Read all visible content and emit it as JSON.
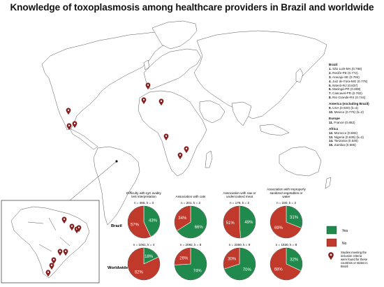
{
  "title": "Knowledge of toxoplasmosis among healthcare providers in Brazil and worldwide",
  "locations": {
    "groups": [
      {
        "name": "Brazil",
        "items": [
          {
            "num": "1.",
            "text": "São Luís-MA (0.768)"
          },
          {
            "num": "2.",
            "text": "Recife-PE (0.772)"
          },
          {
            "num": "3.",
            "text": "Aracaju-SE (0.784)"
          },
          {
            "num": "4.",
            "text": "Juiz de Fora-MG (0.778)"
          },
          {
            "num": "5.",
            "text": "Niterói-RJ (0.837)"
          },
          {
            "num": "6.",
            "text": "Maringá-PR (0.808)"
          },
          {
            "num": "7.",
            "text": "Cascavel-PR (0.782)"
          },
          {
            "num": "8.",
            "text": "Rio Grande-RS (0.744)"
          }
        ]
      },
      {
        "name": "America (excluding Brazil)",
        "items": [
          {
            "num": "9.",
            "text": "USA (0.920) (k=4)"
          },
          {
            "num": "10.",
            "text": "Mexico (0.775) (k=2)"
          }
        ]
      },
      {
        "name": "Europe",
        "items": [
          {
            "num": "11.",
            "text": "France (0.882)"
          }
        ]
      },
      {
        "name": "Africa",
        "items": [
          {
            "num": "12.",
            "text": "Morocco (0.882)"
          },
          {
            "num": "13.",
            "text": "Nigeria (0.535) (k=2)"
          },
          {
            "num": "14.",
            "text": "Tanzania (0.548)"
          },
          {
            "num": "15.",
            "text": "Zambia (0.585)"
          }
        ]
      }
    ]
  },
  "legend": {
    "yes_label": "Yes",
    "no_label": "No",
    "pin_label": "Studies meeting the inclusion criteria were found for these countries or states in Brazil"
  },
  "colors": {
    "yes": "#1f8a4c",
    "no": "#c0392b",
    "pin": "#8b1e1e"
  },
  "chart_data": {
    "type": "pie",
    "row_labels": [
      "Brazil",
      "Worldwide"
    ],
    "columns": [
      {
        "title": "Difficulty with IgG avidity test interpretation",
        "brazil": {
          "n": "n = 465, k = 3",
          "yes": 43,
          "no": 57
        },
        "worldwide": {
          "n": "n = 1061, k = 4",
          "yes": 18,
          "no": 82
        }
      },
      {
        "title": "Association with cats",
        "brazil": {
          "n": "n = 201, k = 2",
          "yes": 66,
          "no": 34
        },
        "worldwide": {
          "n": "n = 2092, k = 8",
          "yes": 74,
          "no": 26
        }
      },
      {
        "title": "Association with raw or undercooked meat",
        "brazil": {
          "n": "n = 178, k = 2",
          "yes": 49,
          "no": 51
        },
        "worldwide": {
          "n": "n = 2350, k = 9",
          "yes": 70,
          "no": 30
        }
      },
      {
        "title": "Association with improperly sanitized vegetables or water",
        "brazil": {
          "n": "n = 230, k = 2",
          "yes": 31,
          "no": 69
        },
        "worldwide": {
          "n": "n = 1830, k = 8",
          "yes": 32,
          "no": 68
        }
      }
    ]
  }
}
